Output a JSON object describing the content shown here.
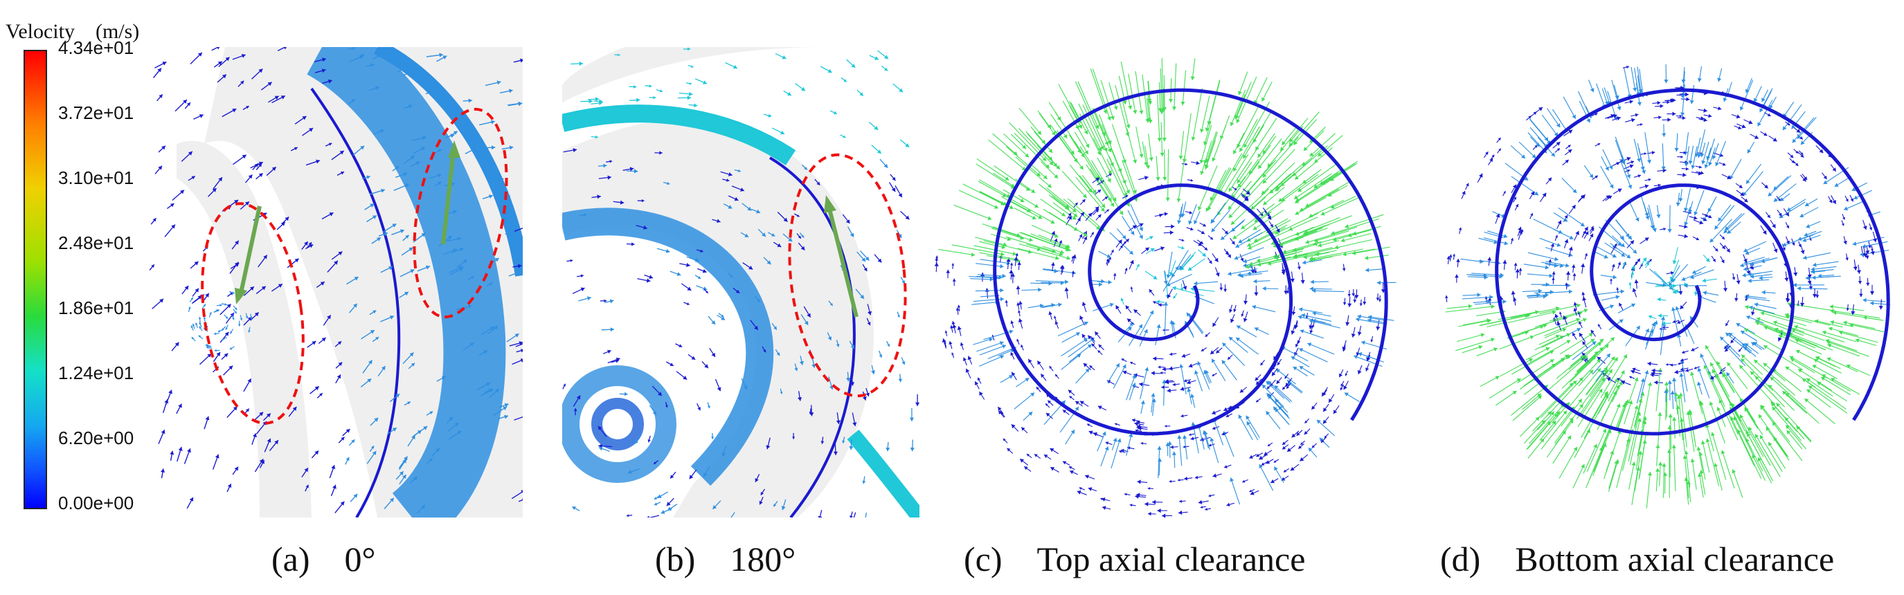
{
  "legend": {
    "title": "Velocity　(m/s)",
    "ticks": [
      "4.34e+01",
      "3.72e+01",
      "3.10e+01",
      "2.48e+01",
      "1.86e+01",
      "1.24e+01",
      "6.20e+00",
      "0.00e+00"
    ],
    "colors": [
      "#ff0000",
      "#ff8000",
      "#f0d000",
      "#9ee000",
      "#2adb3c",
      "#14e0c8",
      "#14a8f0",
      "#1050ff",
      "#0000ff"
    ]
  },
  "captions": {
    "a": "(a)　0°",
    "b": "(b)　180°",
    "c": "(c)　Top axial clearance",
    "d": "(d)　Bottom axial clearance"
  },
  "colors": {
    "background_gap": "#efefef",
    "vector_dark": "#1a1ad0",
    "vector_mid": "#2f8fe0",
    "vector_cyan": "#20c8d8",
    "vector_green": "#44dd55",
    "highlight_ellipse": "#ee1111",
    "highlight_arrow": "#6aa84f"
  }
}
